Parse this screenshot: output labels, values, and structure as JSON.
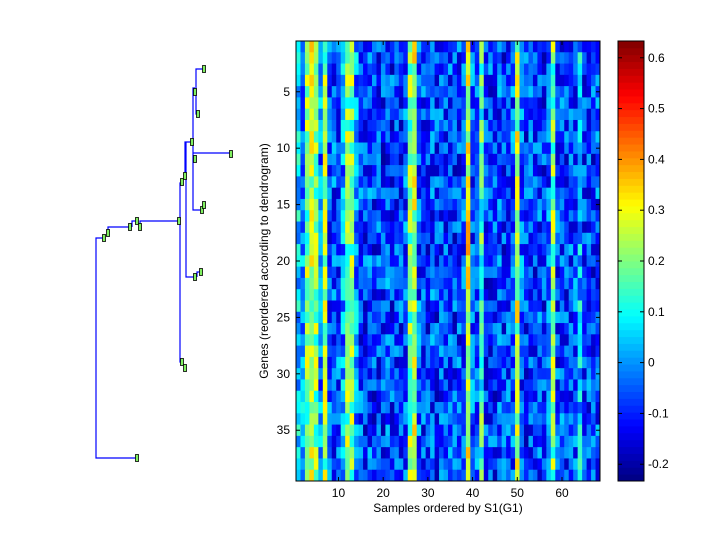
{
  "chart_data": {
    "type": "heatmap",
    "title": "",
    "xlabel": "Samples ordered by S1(G1)",
    "ylabel": "Genes (reordered according to dendrogram)",
    "rows": 39,
    "cols": 68,
    "xlim": [
      0.5,
      68.5
    ],
    "ylim": [
      0.5,
      39.5
    ],
    "xticks": [
      10,
      20,
      30,
      40,
      50,
      60
    ],
    "yticks": [
      5,
      10,
      15,
      20,
      25,
      30,
      35
    ],
    "colormap": "jet",
    "clim": [
      -0.233,
      0.633
    ],
    "colorbar_ticks": [
      0.6,
      0.5,
      0.4,
      0.3,
      0.2,
      0.1,
      0,
      -0.1,
      -0.2
    ],
    "colorbar_tick_labels": [
      "0.6",
      "0.5",
      "0.4",
      "0.3",
      "0.2",
      "0.1",
      "0",
      "-0.1",
      "-0.2"
    ],
    "column_profile": [
      0.05,
      0.0,
      0.2,
      0.25,
      0.2,
      -0.02,
      0.22,
      -0.05,
      -0.06,
      -0.05,
      0.0,
      0.2,
      0.2,
      0.0,
      -0.07,
      -0.08,
      -0.06,
      -0.08,
      -0.07,
      -0.09,
      -0.06,
      -0.08,
      -0.07,
      -0.08,
      -0.05,
      0.2,
      0.25,
      -0.05,
      -0.07,
      -0.08,
      -0.06,
      -0.08,
      -0.07,
      -0.08,
      -0.06,
      -0.08,
      -0.07,
      -0.05,
      0.3,
      -0.05,
      -0.05,
      0.15,
      -0.08,
      -0.07,
      -0.08,
      -0.06,
      -0.08,
      -0.07,
      -0.05,
      0.25,
      -0.05,
      -0.08,
      -0.07,
      -0.08,
      -0.06,
      -0.08,
      -0.05,
      0.2,
      -0.07,
      -0.06,
      -0.08,
      -0.07,
      -0.06,
      0.05,
      -0.08,
      -0.07,
      -0.08,
      -0.06
    ],
    "noise_amplitude": 0.12,
    "dendrogram_leaf_color": "#80f060",
    "dendrogram_line_color": "#0000ff"
  }
}
